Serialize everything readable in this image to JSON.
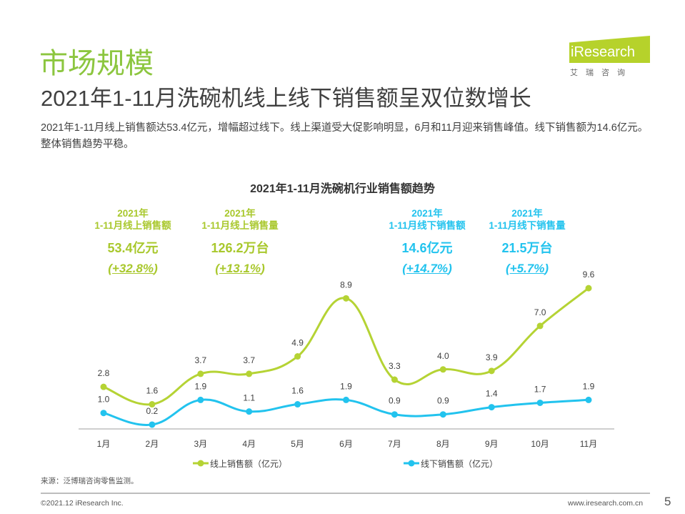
{
  "header": {
    "section": "市场规模",
    "title": "2021年1-11月洗碗机线上线下销售额呈双位数增长",
    "description": "2021年1-11月线上销售额达53.4亿元，增幅超过线下。线上渠道受大促影响明显，6月和11月迎来销售峰值。线下销售额为14.6亿元。整体销售趋势平稳。"
  },
  "logo": {
    "text": "iResearch",
    "cn": "艾瑞咨询"
  },
  "kpis": [
    {
      "year": "2021年",
      "label": "1-11月线上销售额",
      "value": "53.4亿元",
      "growth": "+32.8%",
      "color": "green"
    },
    {
      "year": "2021年",
      "label": "1-11月线上销售量",
      "value": "126.2万台",
      "growth": "+13.1%",
      "color": "green"
    },
    {
      "year": "2021年",
      "label": "1-11月线下销售额",
      "value": "14.6亿元",
      "growth": "+14.7%",
      "color": "blue"
    },
    {
      "year": "2021年",
      "label": "1-11月线下销售量",
      "value": "21.5万台",
      "growth": "+5.7%",
      "color": "blue"
    }
  ],
  "chart_data": {
    "type": "line",
    "title": "2021年1-11月洗碗机行业销售额趋势",
    "categories": [
      "1月",
      "2月",
      "3月",
      "4月",
      "5月",
      "6月",
      "7月",
      "8月",
      "9月",
      "10月",
      "11月"
    ],
    "series": [
      {
        "name": "线上销售额（亿元）",
        "color": "#b5d334",
        "values": [
          2.8,
          1.6,
          3.7,
          3.7,
          4.9,
          8.9,
          3.3,
          4.0,
          3.9,
          7.0,
          9.6
        ]
      },
      {
        "name": "线下销售额（亿元）",
        "color": "#22c3ee",
        "values": [
          1.0,
          0.2,
          1.9,
          1.1,
          1.6,
          1.9,
          0.9,
          0.9,
          1.4,
          1.7,
          1.9
        ]
      }
    ],
    "legend": "bottom",
    "grid": false,
    "smooth": true,
    "data_labels": true
  },
  "footer": {
    "source": "来源：泛博瑞咨询零售监测。",
    "copyright": "©2021.12 iResearch Inc.",
    "url": "www.iresearch.com.cn",
    "page": "5"
  }
}
